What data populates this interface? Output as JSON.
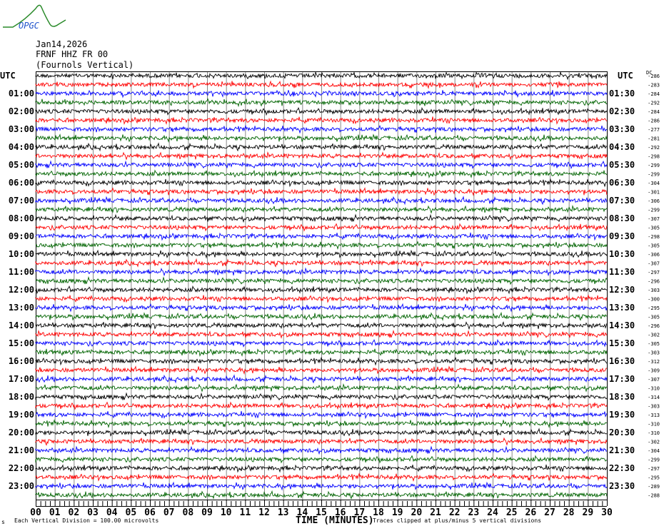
{
  "logo_text": "OPGC",
  "header": {
    "date": "Jan14,2026",
    "station": "FRNF HHZ FR 00",
    "location": "(Fournols Vertical)"
  },
  "left_axis_label": "UTC",
  "right_axis_label": "UTC",
  "dc_header": "DC",
  "left_hour_labels": [
    "UTC",
    "01:00",
    "02:00",
    "03:00",
    "04:00",
    "05:00",
    "06:00",
    "07:00",
    "08:00",
    "09:00",
    "10:00",
    "11:00",
    "12:00",
    "13:00",
    "14:00",
    "15:00",
    "16:00",
    "17:00",
    "18:00",
    "19:00",
    "20:00",
    "21:00",
    "22:00",
    "23:00"
  ],
  "right_hour_labels": [
    "UTC",
    "01:30",
    "02:30",
    "03:30",
    "04:30",
    "05:30",
    "06:30",
    "07:30",
    "08:30",
    "09:30",
    "10:30",
    "11:30",
    "12:30",
    "13:30",
    "14:30",
    "15:30",
    "16:30",
    "17:30",
    "18:30",
    "19:30",
    "20:30",
    "21:30",
    "22:30",
    "23:30"
  ],
  "footer": {
    "scale_note": "Each Vertical Division =  100.00 microvolts",
    "x_title": "TIME (MINUTES)",
    "clip_note": "Traces clipped at plus/minus 5 vertical divisions",
    "corner_mark": "s"
  },
  "chart_data": {
    "type": "line",
    "subtype": "helicorder",
    "xlabel": "TIME (MINUTES)",
    "xlim": [
      0,
      30
    ],
    "x_ticks": [
      "00",
      "01",
      "02",
      "03",
      "04",
      "05",
      "06",
      "07",
      "08",
      "09",
      "10",
      "11",
      "12",
      "13",
      "14",
      "15",
      "16",
      "17",
      "18",
      "19",
      "20",
      "21",
      "22",
      "23",
      "24",
      "25",
      "26",
      "27",
      "28",
      "29",
      "30"
    ],
    "grid": "vertical every minute",
    "trace_colors": [
      "#000000",
      "#ff0000",
      "#0000ff",
      "#006400"
    ],
    "rows_per_hour": 2,
    "dc_offsets": [
      -286,
      -283,
      -284,
      -292,
      -284,
      -286,
      -277,
      -281,
      -292,
      -298,
      -299,
      -299,
      -304,
      -301,
      -306,
      -299,
      -307,
      -305,
      -298,
      -305,
      -306,
      -307,
      -297,
      -296,
      -303,
      -300,
      -295,
      -305,
      -296,
      -302,
      -305,
      -303,
      -312,
      -309,
      -307,
      -310,
      -314,
      -303,
      -313,
      -310,
      -310,
      -302,
      -304,
      -299,
      -297,
      -295,
      -289,
      -288
    ]
  }
}
